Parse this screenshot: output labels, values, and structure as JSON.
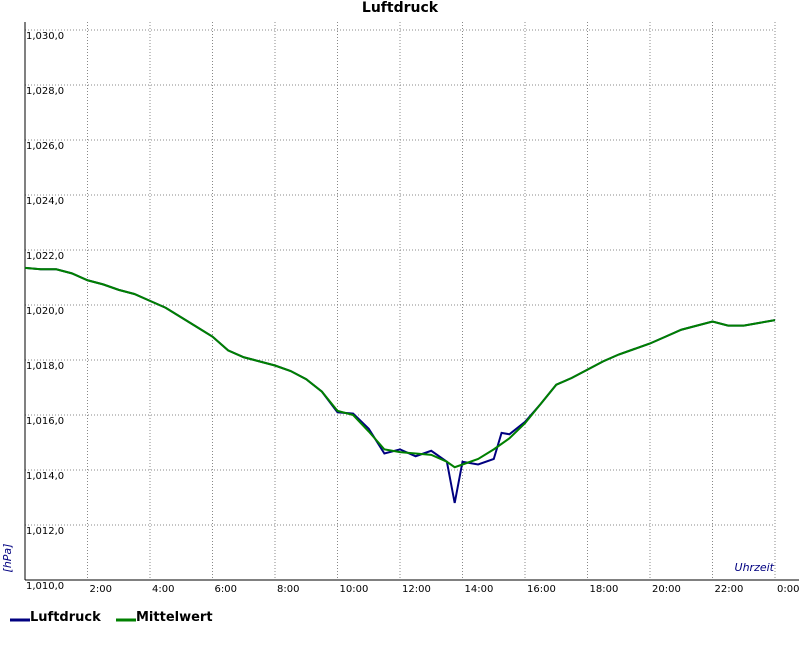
{
  "chart_data": {
    "type": "line",
    "title": "Luftdruck",
    "ylabel": "[hPa]",
    "xlabel": "Uhrzeit",
    "x": [
      0,
      0.5,
      1,
      1.5,
      2,
      2.5,
      3,
      3.5,
      4,
      4.5,
      5,
      5.5,
      6,
      6.5,
      7,
      7.5,
      8,
      8.5,
      9,
      9.5,
      10,
      10.5,
      11,
      11.5,
      12,
      12.5,
      13,
      13.5,
      13.75,
      14,
      14.5,
      15,
      15.25,
      15.5,
      16,
      16.5,
      17,
      17.5,
      18,
      18.5,
      19,
      19.5,
      20,
      20.5,
      21,
      21.5,
      22,
      22.5,
      23,
      23.5,
      24
    ],
    "series": [
      {
        "name": "Luftdruck",
        "color": "#000080",
        "values": [
          1021.35,
          1021.3,
          1021.3,
          1021.15,
          1020.9,
          1020.75,
          1020.55,
          1020.4,
          1020.15,
          1019.9,
          1019.55,
          1019.2,
          1018.85,
          1018.35,
          1018.1,
          1017.95,
          1017.8,
          1017.6,
          1017.3,
          1016.85,
          1016.1,
          1016.05,
          1015.5,
          1014.6,
          1014.75,
          1014.5,
          1014.7,
          1014.3,
          1012.8,
          1014.3,
          1014.2,
          1014.4,
          1015.35,
          1015.3,
          1015.75,
          1016.4,
          1017.1,
          1017.35,
          1017.65,
          1017.95,
          1018.2,
          1018.4,
          1018.6,
          1018.85,
          1019.1,
          1019.25,
          1019.4,
          1019.25,
          1019.25,
          1019.35,
          1019.45
        ]
      },
      {
        "name": "Mittelwert",
        "color": "#008000",
        "values": [
          1021.35,
          1021.3,
          1021.3,
          1021.15,
          1020.9,
          1020.75,
          1020.55,
          1020.4,
          1020.15,
          1019.9,
          1019.55,
          1019.2,
          1018.85,
          1018.35,
          1018.1,
          1017.95,
          1017.8,
          1017.6,
          1017.3,
          1016.85,
          1016.15,
          1016.0,
          1015.4,
          1014.75,
          1014.65,
          1014.6,
          1014.55,
          1014.3,
          1014.1,
          1014.2,
          1014.4,
          1014.75,
          1014.95,
          1015.15,
          1015.7,
          1016.4,
          1017.1,
          1017.35,
          1017.65,
          1017.95,
          1018.2,
          1018.4,
          1018.6,
          1018.85,
          1019.1,
          1019.25,
          1019.4,
          1019.25,
          1019.25,
          1019.35,
          1019.45
        ]
      }
    ],
    "xlim": [
      0,
      24
    ],
    "xticks": [
      {
        "value": 2,
        "label": "2:00"
      },
      {
        "value": 4,
        "label": "4:00"
      },
      {
        "value": 6,
        "label": "6:00"
      },
      {
        "value": 8,
        "label": "8:00"
      },
      {
        "value": 10,
        "label": "10:00"
      },
      {
        "value": 12,
        "label": "12:00"
      },
      {
        "value": 14,
        "label": "14:00"
      },
      {
        "value": 16,
        "label": "16:00"
      },
      {
        "value": 18,
        "label": "18:00"
      },
      {
        "value": 20,
        "label": "20:00"
      },
      {
        "value": 22,
        "label": "22:00"
      },
      {
        "value": 24,
        "label": "0:00"
      }
    ],
    "ylim": [
      1010,
      1030
    ],
    "yticks": [
      {
        "value": 1010,
        "label": "1,010,0"
      },
      {
        "value": 1012,
        "label": "1,012,0"
      },
      {
        "value": 1014,
        "label": "1,014,0"
      },
      {
        "value": 1016,
        "label": "1,016,0"
      },
      {
        "value": 1018,
        "label": "1,018,0"
      },
      {
        "value": 1020,
        "label": "1,020,0"
      },
      {
        "value": 1022,
        "label": "1,022,0"
      },
      {
        "value": 1024,
        "label": "1,024,0"
      },
      {
        "value": 1026,
        "label": "1,026,0"
      },
      {
        "value": 1028,
        "label": "1,028,0"
      },
      {
        "value": 1030,
        "label": "1,030,0"
      }
    ],
    "grid": true,
    "legend": "bottom-left"
  }
}
